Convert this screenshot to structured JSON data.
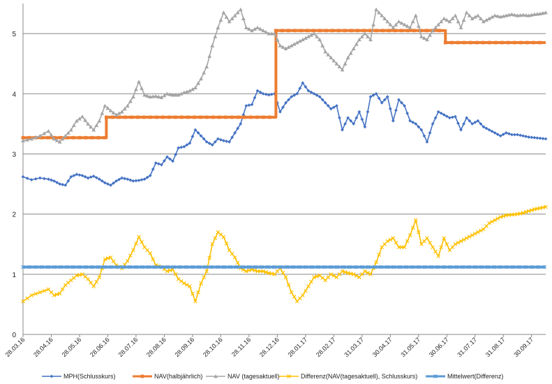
{
  "chart_data": {
    "type": "line",
    "title": "",
    "xlabel": "",
    "ylabel": "",
    "ylim": [
      0,
      5.5
    ],
    "y_ticks": [
      "0",
      "1",
      "2",
      "3",
      "4",
      "5"
    ],
    "x_ticks": [
      "28.03.16",
      "28.04.16",
      "28.05.16",
      "28.06.16",
      "28.07.16",
      "28.08.16",
      "28.09.16",
      "28.10.16",
      "28.11.16",
      "28.12.16",
      "28.01.17",
      "28.02.17",
      "31.03.17",
      "30.04.17",
      "31.05.17",
      "30.06.17",
      "31.07.17",
      "31.08.17",
      "30.09.17"
    ],
    "grid": true,
    "legend_position": "bottom",
    "series": [
      {
        "name": "MPH(Schlusskurs)",
        "color": "#4472c4",
        "marker": "diamond",
        "x": [
          0,
          0.3,
          0.6,
          0.9,
          1.1,
          1.3,
          1.5,
          1.7,
          1.9,
          2.1,
          2.3,
          2.5,
          2.7,
          2.9,
          3.1,
          3.3,
          3.5,
          3.7,
          3.9,
          4.1,
          4.3,
          4.5,
          4.7,
          4.9,
          5.1,
          5.3,
          5.5,
          5.7,
          5.9,
          6.1,
          6.3,
          6.5,
          6.7,
          6.9,
          7.1,
          7.3,
          7.5,
          7.7,
          7.9,
          8.1,
          8.3,
          8.5,
          8.7,
          8.9,
          9.1,
          9.3,
          9.5,
          9.7,
          9.9,
          10.1,
          10.3,
          10.5,
          10.7,
          10.9,
          11.1,
          11.3,
          11.5,
          11.7,
          11.9,
          12.1,
          12.3,
          12.5,
          12.7,
          12.9,
          13.1,
          13.3,
          13.5,
          13.7,
          13.9,
          14.1,
          14.3,
          14.5,
          14.7,
          14.9,
          15.1,
          15.3,
          15.5,
          15.7,
          15.9,
          16.1,
          16.3,
          16.5,
          16.7,
          16.9,
          17.1,
          17.3,
          17.5,
          17.7,
          17.9,
          18.1,
          18.3,
          18.5
        ],
        "values": [
          2.62,
          2.57,
          2.6,
          2.58,
          2.55,
          2.5,
          2.48,
          2.62,
          2.66,
          2.64,
          2.6,
          2.63,
          2.58,
          2.52,
          2.48,
          2.55,
          2.6,
          2.58,
          2.55,
          2.56,
          2.58,
          2.64,
          2.85,
          2.82,
          2.95,
          2.88,
          3.1,
          3.12,
          3.18,
          3.4,
          3.3,
          3.2,
          3.15,
          3.25,
          3.22,
          3.2,
          3.35,
          3.5,
          3.8,
          3.82,
          4.05,
          4.0,
          3.98,
          4.0,
          3.7,
          3.85,
          3.95,
          4.0,
          4.18,
          4.05,
          4.0,
          3.95,
          3.85,
          3.75,
          3.8,
          3.4,
          3.6,
          3.5,
          3.7,
          3.45,
          3.95,
          4.0,
          3.85,
          3.95,
          3.55,
          3.9,
          3.8,
          3.55,
          3.5,
          3.4,
          3.2,
          3.5,
          3.7,
          3.65,
          3.6,
          3.62,
          3.4,
          3.6,
          3.5,
          3.55,
          3.45,
          3.4,
          3.35,
          3.3,
          3.35,
          3.32,
          3.32,
          3.3,
          3.28,
          3.27,
          3.26,
          3.25
        ]
      },
      {
        "name": "NAV(halbjährlich)",
        "color": "#ed7d31",
        "marker": "square",
        "x": [
          0,
          2.95,
          2.95,
          8.95,
          8.95,
          14.95,
          14.95,
          18.5
        ],
        "values": [
          3.27,
          3.27,
          3.61,
          3.61,
          5.05,
          5.05,
          4.85,
          4.85
        ]
      },
      {
        "name": "NAV (tagesaktuell)",
        "color": "#a5a5a5",
        "marker": "triangle",
        "x": [
          0,
          0.3,
          0.6,
          0.9,
          1.1,
          1.3,
          1.5,
          1.7,
          1.9,
          2.1,
          2.3,
          2.5,
          2.7,
          2.9,
          3.1,
          3.3,
          3.5,
          3.7,
          3.9,
          4.1,
          4.3,
          4.5,
          4.7,
          4.9,
          5.1,
          5.3,
          5.5,
          5.7,
          5.9,
          6.1,
          6.3,
          6.5,
          6.7,
          6.9,
          7.1,
          7.3,
          7.5,
          7.7,
          7.9,
          8.1,
          8.3,
          8.5,
          8.7,
          8.9,
          9.1,
          9.3,
          9.5,
          9.7,
          9.9,
          10.1,
          10.3,
          10.5,
          10.7,
          10.9,
          11.1,
          11.3,
          11.5,
          11.7,
          11.9,
          12.1,
          12.3,
          12.5,
          12.7,
          12.9,
          13.1,
          13.3,
          13.5,
          13.7,
          13.9,
          14.1,
          14.3,
          14.5,
          14.7,
          14.9,
          15.1,
          15.3,
          15.5,
          15.7,
          15.9,
          16.1,
          16.3,
          16.5,
          16.7,
          16.9,
          17.1,
          17.3,
          17.5,
          17.7,
          17.9,
          18.1,
          18.3,
          18.5
        ],
        "values": [
          3.22,
          3.25,
          3.3,
          3.38,
          3.25,
          3.2,
          3.3,
          3.4,
          3.55,
          3.62,
          3.5,
          3.4,
          3.55,
          3.8,
          3.72,
          3.65,
          3.7,
          3.8,
          3.95,
          4.2,
          3.98,
          3.95,
          3.96,
          3.94,
          4.0,
          3.98,
          3.98,
          4.02,
          4.05,
          4.1,
          4.25,
          4.45,
          4.8,
          5.1,
          5.35,
          5.2,
          5.3,
          5.4,
          5.1,
          5.05,
          5.1,
          5.05,
          5.0,
          5.0,
          4.8,
          4.75,
          4.8,
          4.85,
          4.9,
          4.95,
          5.0,
          4.9,
          4.7,
          4.6,
          4.5,
          4.4,
          4.6,
          4.75,
          4.9,
          5.0,
          4.9,
          5.4,
          5.3,
          5.2,
          5.1,
          5.2,
          5.15,
          5.1,
          5.3,
          4.95,
          4.9,
          5.05,
          5.15,
          5.25,
          5.2,
          5.3,
          5.1,
          5.35,
          5.25,
          5.3,
          5.2,
          5.25,
          5.3,
          5.28,
          5.3,
          5.32,
          5.3,
          5.31,
          5.3,
          5.32,
          5.33,
          5.35
        ]
      },
      {
        "name": "Differenz(NAV(tagesaktuell), Schlusskurs)",
        "color": "#ffc000",
        "marker": "x",
        "x": [
          0,
          0.3,
          0.6,
          0.9,
          1.1,
          1.3,
          1.5,
          1.7,
          1.9,
          2.1,
          2.3,
          2.5,
          2.7,
          2.9,
          3.1,
          3.3,
          3.5,
          3.7,
          3.9,
          4.1,
          4.3,
          4.5,
          4.7,
          4.9,
          5.1,
          5.3,
          5.5,
          5.7,
          5.9,
          6.1,
          6.3,
          6.5,
          6.7,
          6.9,
          7.1,
          7.3,
          7.5,
          7.7,
          7.9,
          8.1,
          8.3,
          8.5,
          8.7,
          8.9,
          9.1,
          9.3,
          9.5,
          9.7,
          9.9,
          10.1,
          10.3,
          10.5,
          10.7,
          10.9,
          11.1,
          11.3,
          11.5,
          11.7,
          11.9,
          12.1,
          12.3,
          12.5,
          12.7,
          12.9,
          13.1,
          13.3,
          13.5,
          13.7,
          13.9,
          14.1,
          14.3,
          14.5,
          14.7,
          14.9,
          15.1,
          15.3,
          15.5,
          15.7,
          15.9,
          16.1,
          16.3,
          16.5,
          16.7,
          16.9,
          17.1,
          17.3,
          17.5,
          17.7,
          17.9,
          18.1,
          18.3,
          18.5
        ],
        "values": [
          0.55,
          0.65,
          0.7,
          0.75,
          0.65,
          0.68,
          0.82,
          0.9,
          0.98,
          1.0,
          0.92,
          0.8,
          0.95,
          1.25,
          1.28,
          1.15,
          1.1,
          1.22,
          1.4,
          1.62,
          1.45,
          1.35,
          1.15,
          1.12,
          1.05,
          1.08,
          0.92,
          0.85,
          0.8,
          0.55,
          0.85,
          1.05,
          1.5,
          1.7,
          1.62,
          1.4,
          1.28,
          1.1,
          1.05,
          1.08,
          1.05,
          1.05,
          1.02,
          1.0,
          1.1,
          0.95,
          0.7,
          0.55,
          0.65,
          0.8,
          0.95,
          0.98,
          0.9,
          1.0,
          0.95,
          1.05,
          1.02,
          1.0,
          0.95,
          1.05,
          1.0,
          1.2,
          1.45,
          1.55,
          1.6,
          1.45,
          1.45,
          1.65,
          1.9,
          1.5,
          1.6,
          1.45,
          1.3,
          1.6,
          1.4,
          1.5,
          1.55,
          1.6,
          1.65,
          1.7,
          1.75,
          1.85,
          1.9,
          1.95,
          1.98,
          1.99,
          2.0,
          2.02,
          2.05,
          2.08,
          2.1,
          2.12
        ]
      },
      {
        "name": "Mittelwert(Differenz)",
        "color": "#5b9bd5",
        "marker": "star",
        "x": [
          0,
          18.5
        ],
        "values": [
          1.12,
          1.12
        ]
      }
    ]
  }
}
